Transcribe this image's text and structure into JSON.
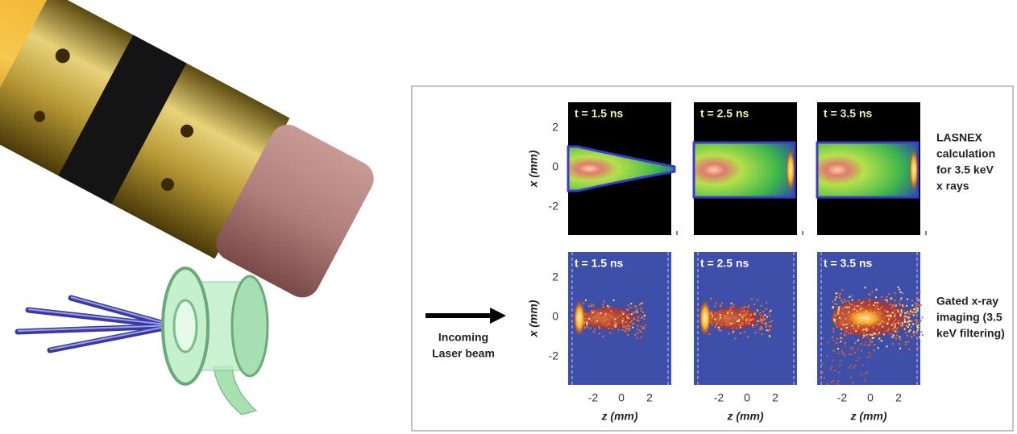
{
  "panel": {
    "arrow_label": [
      "Incoming",
      "Laser beam"
    ],
    "rows": [
      {
        "label": [
          "LASNEX",
          "calculation",
          "for 3.5 keV",
          "x rays"
        ],
        "y_axis_label": "x (mm)",
        "y_ticks": [
          "2",
          "0",
          "-2"
        ],
        "frames": [
          "t = 1.5 ns",
          "t = 2.5 ns",
          "t = 3.5 ns"
        ]
      },
      {
        "label": [
          "Gated x-ray",
          "imaging (3.5",
          "keV filtering)"
        ],
        "y_axis_label": "x (mm)",
        "y_ticks": [
          "2",
          "0",
          "-2"
        ],
        "frames": [
          "t = 1.5 ns",
          "t = 2.5 ns",
          "t = 3.5 ns"
        ]
      }
    ],
    "x_axis_label": "z  (mm)",
    "x_ticks": [
      "-2",
      "0",
      "2"
    ]
  }
}
